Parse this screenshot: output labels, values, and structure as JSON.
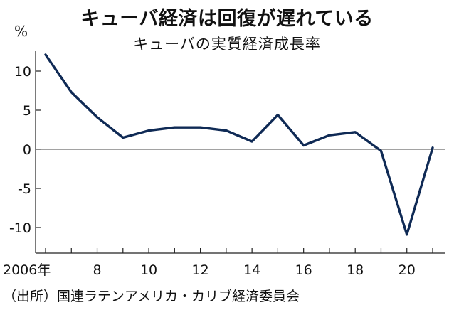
{
  "header": {
    "title": "キューバ経済は回復が遅れている",
    "subtitle": "キューバの実質経済成長率",
    "unit": "%"
  },
  "footer": {
    "source": "（出所）国連ラテンアメリカ・カリブ経済委員会"
  },
  "colors": {
    "line": "#0f2a55",
    "axis": "#222222",
    "zero_line": "#444444"
  },
  "chart_data": {
    "type": "line",
    "title": "キューバの実質経済成長率",
    "ylabel": "%",
    "xlabel": "",
    "x": [
      2006,
      2007,
      2008,
      2009,
      2010,
      2011,
      2012,
      2013,
      2014,
      2015,
      2016,
      2017,
      2018,
      2019,
      2020,
      2021
    ],
    "series": [
      {
        "values": [
          12.1,
          7.3,
          4.1,
          1.5,
          2.4,
          2.8,
          2.8,
          2.4,
          1.0,
          4.4,
          0.5,
          1.8,
          2.2,
          -0.2,
          -10.9,
          0.2
        ]
      }
    ],
    "xlim": [
      2006,
      2021
    ],
    "ylim": [
      -12,
      12.5
    ],
    "x_ticks": [
      2006,
      2008,
      2010,
      2012,
      2014,
      2016,
      2018,
      2020
    ],
    "x_tick_labels": [
      "2006年",
      "8",
      "10",
      "12",
      "14",
      "16",
      "18",
      "20"
    ],
    "y_ticks": [
      10,
      5,
      0,
      -5,
      -10
    ],
    "y_tick_labels": [
      "10",
      "5",
      "0",
      "-5",
      "-10"
    ],
    "grid": false,
    "zero_line": true
  }
}
